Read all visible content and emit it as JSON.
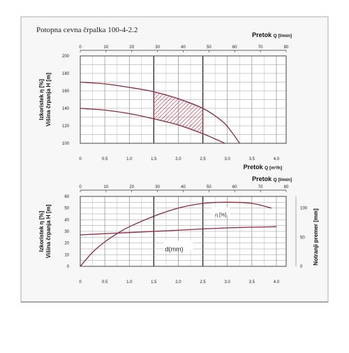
{
  "title": "Potopna cevna črpalka 100-4-2.2",
  "colors": {
    "curve": "#8a2a3c",
    "hatch": "#b22a3a",
    "grid": "#7a7a7a",
    "frame": "#555555",
    "panel": "#f7f7f7"
  },
  "chart_data": [
    {
      "type": "line",
      "top_axis": {
        "label": "Pretok",
        "unit": "Q [l/min]",
        "ticks": [
          "0",
          "10",
          "20",
          "30",
          "40",
          "50",
          "60",
          "70",
          "80"
        ],
        "range": [
          0,
          80
        ]
      },
      "bottom_axis": {
        "label": "Pretok",
        "unit": "Q [m³/h]",
        "ticks": [
          "0",
          "0.5",
          "1.0",
          "1.5",
          "2.0",
          "2.5",
          "3.0",
          "3.5",
          "4.0"
        ],
        "range": [
          0,
          4.2
        ]
      },
      "ylabel_lines": [
        "Izkoristek η [%]",
        "Višina črpanja H [m]"
      ],
      "y_ticks": [
        "100",
        "120",
        "140",
        "160",
        "180",
        "200"
      ],
      "ylim": [
        100,
        200
      ],
      "grid": true,
      "series": [
        {
          "x": [
            0,
            0.5,
            1.0,
            1.5,
            2.0,
            2.5,
            2.9,
            3.1,
            3.25
          ],
          "values": [
            170,
            168,
            164,
            159,
            151,
            140,
            125,
            112,
            100
          ]
        },
        {
          "x": [
            0,
            0.5,
            1.0,
            1.5,
            2.0,
            2.5,
            2.75,
            2.95
          ],
          "values": [
            140,
            138,
            134,
            128,
            121,
            111,
            105,
            100
          ]
        }
      ],
      "shaded_region": {
        "x_range": [
          1.5,
          2.5
        ]
      }
    },
    {
      "type": "line",
      "top_axis": {
        "label": "Pretok",
        "unit": "Q [l/min]",
        "ticks": [
          "0",
          "10",
          "20",
          "30",
          "40",
          "50",
          "60",
          "70",
          "80"
        ],
        "range": [
          0,
          80
        ]
      },
      "bottom_axis": {
        "ticks": [
          "0",
          "0.5",
          "1.0",
          "1.5",
          "2.0",
          "2.5",
          "3.0",
          "3.5",
          "4.0"
        ],
        "range": [
          0,
          4.2
        ]
      },
      "ylabel_lines": [
        "Izkoristek η [%]",
        "Višina črpanja H [m]"
      ],
      "y_ticks": [
        "0",
        "10",
        "20",
        "30",
        "40",
        "50",
        "60"
      ],
      "ylim": [
        0,
        60
      ],
      "right_axis": {
        "label": "Notranji premer [mm]",
        "ticks": [
          "0",
          "50",
          "100"
        ],
        "range": [
          0,
          120
        ]
      },
      "grid": true,
      "series": [
        {
          "name": "η [%]",
          "x": [
            0,
            0.25,
            0.5,
            0.75,
            1.0,
            1.5,
            2.0,
            2.5,
            3.0,
            3.5,
            3.9
          ],
          "values": [
            0,
            12,
            21,
            28,
            34,
            43,
            50,
            54,
            55,
            54,
            50
          ]
        },
        {
          "name": "d(mm)",
          "x": [
            0,
            1.0,
            2.0,
            3.0,
            4.0
          ],
          "values": [
            27,
            29,
            31,
            33,
            34
          ]
        }
      ]
    }
  ]
}
